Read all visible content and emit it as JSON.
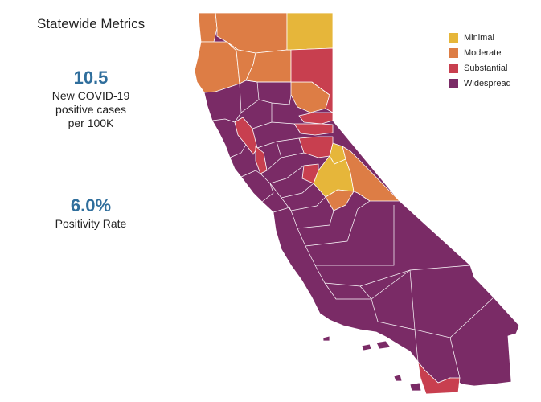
{
  "panel": {
    "title": "Statewide Metrics"
  },
  "metrics": {
    "cases": {
      "value": "10.5",
      "label_lines": [
        "New COVID-19",
        "positive cases",
        "per 100K"
      ]
    },
    "positivity": {
      "value": "6.0%",
      "label": "Positivity Rate"
    }
  },
  "legend": {
    "items": [
      {
        "label": "Minimal",
        "color": "#e6b63a"
      },
      {
        "label": "Moderate",
        "color": "#dd7d45"
      },
      {
        "label": "Substantial",
        "color": "#c83f4f"
      },
      {
        "label": "Widespread",
        "color": "#7a2b66"
      }
    ]
  },
  "colors": {
    "minimal": "#e6b63a",
    "moderate": "#dd7d45",
    "substantial": "#c83f4f",
    "widespread": "#7a2b66",
    "metric_value": "#2f6e9c"
  }
}
